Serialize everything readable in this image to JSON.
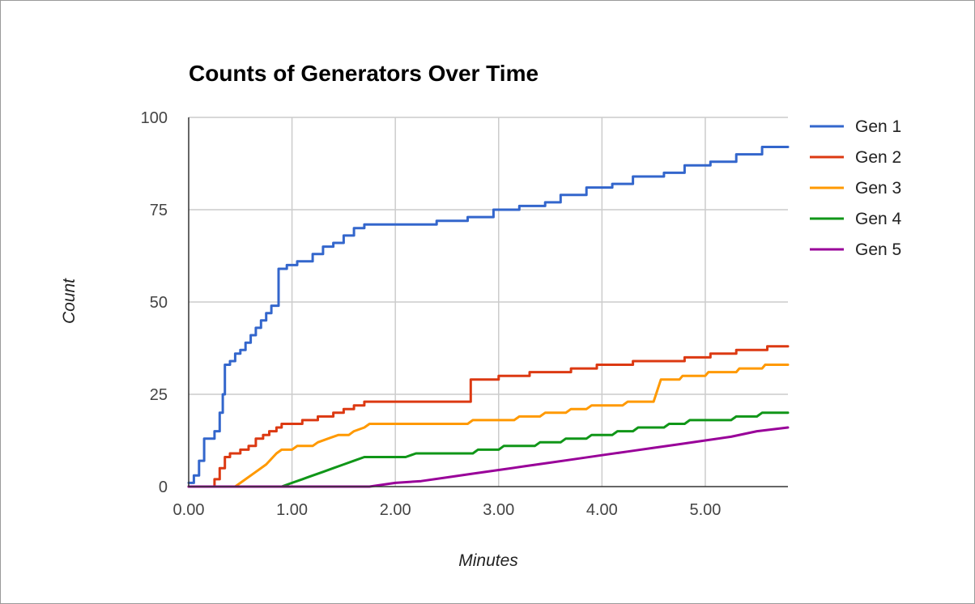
{
  "chart_data": {
    "type": "line",
    "title": "Counts of Generators Over Time",
    "xlabel": "Minutes",
    "ylabel": "Count",
    "xlim": [
      0,
      5.8
    ],
    "ylim": [
      0,
      100
    ],
    "x_ticks": [
      "0.00",
      "1.00",
      "2.00",
      "3.00",
      "4.00",
      "5.00"
    ],
    "y_ticks": [
      "0",
      "25",
      "50",
      "75",
      "100"
    ],
    "grid": true,
    "legend_position": "right",
    "series": [
      {
        "name": "Gen 1",
        "color": "#3366cc",
        "shape": "step",
        "points": [
          [
            0,
            1
          ],
          [
            0.05,
            3
          ],
          [
            0.1,
            7
          ],
          [
            0.15,
            13
          ],
          [
            0.22,
            13
          ],
          [
            0.25,
            15
          ],
          [
            0.3,
            20
          ],
          [
            0.33,
            25
          ],
          [
            0.35,
            33
          ],
          [
            0.4,
            34
          ],
          [
            0.45,
            36
          ],
          [
            0.5,
            37
          ],
          [
            0.55,
            39
          ],
          [
            0.6,
            41
          ],
          [
            0.65,
            43
          ],
          [
            0.7,
            45
          ],
          [
            0.75,
            47
          ],
          [
            0.8,
            49
          ],
          [
            0.87,
            59
          ],
          [
            0.95,
            60
          ],
          [
            1.05,
            61
          ],
          [
            1.2,
            63
          ],
          [
            1.3,
            65
          ],
          [
            1.4,
            66
          ],
          [
            1.5,
            68
          ],
          [
            1.6,
            70
          ],
          [
            1.7,
            71
          ],
          [
            2.4,
            72
          ],
          [
            2.7,
            73
          ],
          [
            2.95,
            75
          ],
          [
            3.2,
            76
          ],
          [
            3.45,
            77
          ],
          [
            3.6,
            79
          ],
          [
            3.85,
            81
          ],
          [
            4.1,
            82
          ],
          [
            4.3,
            84
          ],
          [
            4.6,
            85
          ],
          [
            4.8,
            87
          ],
          [
            5.05,
            88
          ],
          [
            5.3,
            90
          ],
          [
            5.55,
            92
          ],
          [
            5.8,
            92
          ]
        ]
      },
      {
        "name": "Gen 2",
        "color": "#dc3912",
        "shape": "step",
        "points": [
          [
            0,
            0
          ],
          [
            0.2,
            0
          ],
          [
            0.25,
            2
          ],
          [
            0.3,
            5
          ],
          [
            0.35,
            8
          ],
          [
            0.4,
            9
          ],
          [
            0.5,
            10
          ],
          [
            0.58,
            11
          ],
          [
            0.65,
            13
          ],
          [
            0.72,
            14
          ],
          [
            0.78,
            15
          ],
          [
            0.85,
            16
          ],
          [
            0.9,
            17
          ],
          [
            1.1,
            18
          ],
          [
            1.25,
            19
          ],
          [
            1.4,
            20
          ],
          [
            1.5,
            21
          ],
          [
            1.6,
            22
          ],
          [
            1.7,
            23
          ],
          [
            2.73,
            29
          ],
          [
            3.0,
            30
          ],
          [
            3.3,
            31
          ],
          [
            3.7,
            32
          ],
          [
            3.95,
            33
          ],
          [
            4.3,
            34
          ],
          [
            4.8,
            35
          ],
          [
            5.05,
            36
          ],
          [
            5.3,
            37
          ],
          [
            5.6,
            38
          ],
          [
            5.8,
            38
          ]
        ]
      },
      {
        "name": "Gen 3",
        "color": "#ff9900",
        "shape": "ramp",
        "points": [
          [
            0,
            0
          ],
          [
            0.45,
            0
          ],
          [
            0.55,
            2
          ],
          [
            0.65,
            4
          ],
          [
            0.75,
            6
          ],
          [
            0.85,
            9
          ],
          [
            0.9,
            10
          ],
          [
            1.0,
            10
          ],
          [
            1.05,
            11
          ],
          [
            1.2,
            11
          ],
          [
            1.25,
            12
          ],
          [
            1.35,
            13
          ],
          [
            1.45,
            14
          ],
          [
            1.55,
            14
          ],
          [
            1.6,
            15
          ],
          [
            1.7,
            16
          ],
          [
            1.75,
            17
          ],
          [
            2.7,
            17
          ],
          [
            2.75,
            18
          ],
          [
            3.15,
            18
          ],
          [
            3.2,
            19
          ],
          [
            3.4,
            19
          ],
          [
            3.45,
            20
          ],
          [
            3.65,
            20
          ],
          [
            3.7,
            21
          ],
          [
            3.85,
            21
          ],
          [
            3.9,
            22
          ],
          [
            4.2,
            22
          ],
          [
            4.25,
            23
          ],
          [
            4.5,
            23
          ],
          [
            4.57,
            29
          ],
          [
            4.75,
            29
          ],
          [
            4.78,
            30
          ],
          [
            5.0,
            30
          ],
          [
            5.03,
            31
          ],
          [
            5.3,
            31
          ],
          [
            5.33,
            32
          ],
          [
            5.55,
            32
          ],
          [
            5.58,
            33
          ],
          [
            5.8,
            33
          ]
        ]
      },
      {
        "name": "Gen 4",
        "color": "#109618",
        "shape": "ramp",
        "points": [
          [
            0,
            0
          ],
          [
            0.9,
            0
          ],
          [
            1.0,
            1
          ],
          [
            1.1,
            2
          ],
          [
            1.2,
            3
          ],
          [
            1.3,
            4
          ],
          [
            1.4,
            5
          ],
          [
            1.5,
            6
          ],
          [
            1.6,
            7
          ],
          [
            1.7,
            8
          ],
          [
            2.1,
            8
          ],
          [
            2.2,
            9
          ],
          [
            2.75,
            9
          ],
          [
            2.8,
            10
          ],
          [
            3.0,
            10
          ],
          [
            3.05,
            11
          ],
          [
            3.35,
            11
          ],
          [
            3.4,
            12
          ],
          [
            3.6,
            12
          ],
          [
            3.65,
            13
          ],
          [
            3.85,
            13
          ],
          [
            3.9,
            14
          ],
          [
            4.1,
            14
          ],
          [
            4.15,
            15
          ],
          [
            4.3,
            15
          ],
          [
            4.35,
            16
          ],
          [
            4.6,
            16
          ],
          [
            4.65,
            17
          ],
          [
            4.8,
            17
          ],
          [
            4.85,
            18
          ],
          [
            5.25,
            18
          ],
          [
            5.3,
            19
          ],
          [
            5.5,
            19
          ],
          [
            5.55,
            20
          ],
          [
            5.8,
            20
          ]
        ]
      },
      {
        "name": "Gen 5",
        "color": "#990099",
        "shape": "linear",
        "points": [
          [
            0,
            0
          ],
          [
            1.75,
            0
          ],
          [
            2.0,
            1
          ],
          [
            2.25,
            1.5
          ],
          [
            2.5,
            2.5
          ],
          [
            2.75,
            3.5
          ],
          [
            3.0,
            4.5
          ],
          [
            3.25,
            5.5
          ],
          [
            3.5,
            6.5
          ],
          [
            3.75,
            7.5
          ],
          [
            4.0,
            8.5
          ],
          [
            4.25,
            9.5
          ],
          [
            4.5,
            10.5
          ],
          [
            4.75,
            11.5
          ],
          [
            5.0,
            12.5
          ],
          [
            5.25,
            13.5
          ],
          [
            5.5,
            15
          ],
          [
            5.8,
            16
          ]
        ]
      }
    ]
  }
}
